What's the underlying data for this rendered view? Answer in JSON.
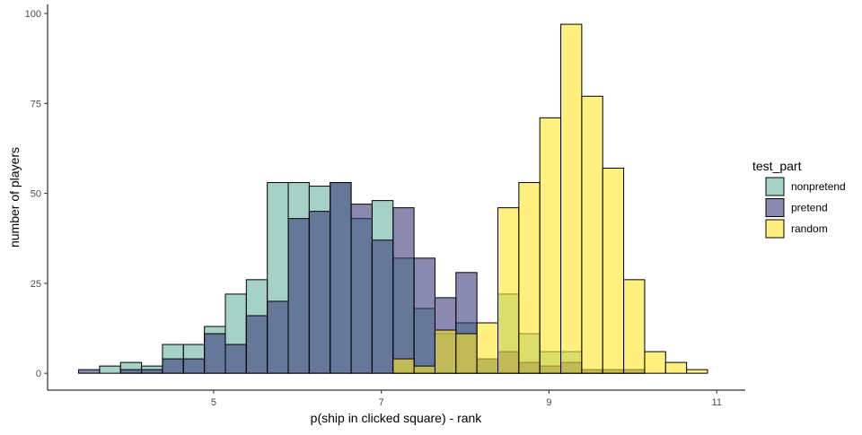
{
  "chart_data": {
    "type": "bar",
    "subtype": "overlapping-histogram",
    "title": "",
    "xlabel": "p(ship in clicked square) - rank",
    "ylabel": "number of players",
    "xlim": [
      3.02,
      11.34
    ],
    "ylim": [
      -4.7,
      102.5
    ],
    "xticks": [
      5,
      7,
      9,
      11
    ],
    "xtick_labels": [
      "5",
      "7",
      "9",
      "11"
    ],
    "yticks": [
      0,
      25,
      50,
      75,
      100
    ],
    "ytick_labels": [
      "0",
      "25",
      "50",
      "75",
      "100"
    ],
    "grid": false,
    "bin_start": 3.39,
    "bin_width": 0.25,
    "legend": {
      "title": "test_part",
      "placement": "right"
    },
    "series": [
      {
        "name": "nonpretend",
        "color": "#6bb2a0",
        "alpha": 0.6,
        "values": [
          0,
          2,
          3,
          2,
          8,
          8,
          13,
          22,
          26,
          53,
          53,
          52,
          53,
          43,
          48,
          32,
          18,
          11,
          14,
          4,
          22,
          11,
          6,
          6,
          1,
          1,
          1,
          0,
          0,
          0
        ]
      },
      {
        "name": "pretend",
        "color": "#3c3c7b",
        "alpha": 0.6,
        "values": [
          1,
          0,
          1,
          1,
          4,
          4,
          11,
          8,
          16,
          20,
          43,
          45,
          53,
          47,
          37,
          46,
          32,
          21,
          28,
          4,
          6,
          3,
          2,
          3,
          1,
          1,
          1,
          0,
          0,
          0
        ]
      },
      {
        "name": "random",
        "color": "#ffe62a",
        "alpha": 0.6,
        "values": [
          0,
          0,
          0,
          0,
          0,
          0,
          0,
          0,
          0,
          0,
          0,
          0,
          0,
          0,
          0,
          4,
          2,
          12,
          11,
          14,
          46,
          53,
          71,
          97,
          77,
          57,
          26,
          6,
          3,
          1
        ]
      }
    ]
  }
}
